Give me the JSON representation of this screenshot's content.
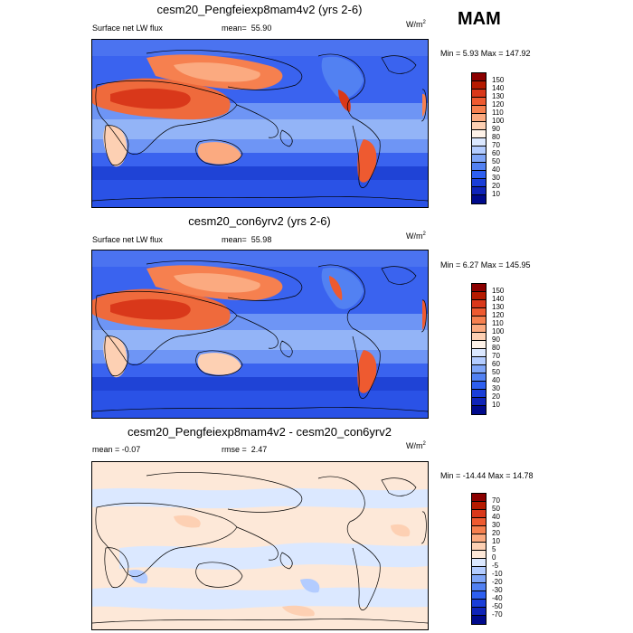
{
  "season": "MAM",
  "units_base": "W/m",
  "units_exp": "2",
  "panels": [
    {
      "title": "cesm20_Pengfeiexp8mam4v2 (yrs 2-6)",
      "left_label": "Surface net LW flux",
      "mid_label": "mean=",
      "mid_value": "55.90",
      "minmax": "Min =   5.93 Max = 147.92",
      "type": "field"
    },
    {
      "title": "cesm20_con6yrv2 (yrs 2-6)",
      "left_label": "Surface net LW flux",
      "mid_label": "mean=",
      "mid_value": "55.98",
      "minmax": "Min =   6.27 Max = 145.95",
      "type": "field"
    },
    {
      "title": "cesm20_Pengfeiexp8mam4v2 - cesm20_con6yrv2",
      "left_label": "mean =  -0.07",
      "mid_label": "rmse =",
      "mid_value": "2.47",
      "minmax": "Min = -14.44 Max =  14.78",
      "type": "diff"
    }
  ],
  "colorbars": {
    "field": {
      "labels": [
        "150",
        "140",
        "130",
        "120",
        "110",
        "100",
        "90",
        "80",
        "70",
        "60",
        "50",
        "40",
        "30",
        "20",
        "10"
      ],
      "colors": [
        "#8b0000",
        "#b51a00",
        "#d9381a",
        "#ee5a30",
        "#f6804f",
        "#fbaa80",
        "#fdd0b3",
        "#fef2e8",
        "#dbe8ff",
        "#b3ccff",
        "#7fa5f7",
        "#5281f2",
        "#2e5ff0",
        "#1a3ed8",
        "#0f24b8",
        "#000a8c"
      ]
    },
    "diff": {
      "labels": [
        "70",
        "50",
        "40",
        "30",
        "20",
        "10",
        "5",
        "0",
        "-5",
        "-10",
        "-20",
        "-30",
        "-40",
        "-50",
        "-70"
      ],
      "colors": [
        "#8b0000",
        "#b51a00",
        "#d9381a",
        "#ee5a30",
        "#f6804f",
        "#fbaa80",
        "#fdd0b3",
        "#fde8d8",
        "#dbe8ff",
        "#b3ccff",
        "#7fa5f7",
        "#5281f2",
        "#2e5ff0",
        "#1a3ed8",
        "#0f24b8",
        "#000a8c"
      ]
    }
  }
}
